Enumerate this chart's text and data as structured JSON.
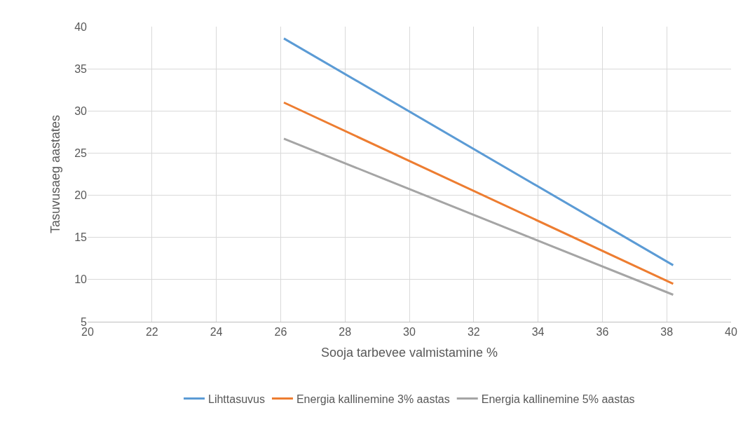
{
  "chart_data": {
    "type": "line",
    "xlabel": "Sooja tarbevee valmistamine %",
    "ylabel": "Tasuvusaeg aastates",
    "x": [
      26.1,
      38.2
    ],
    "series": [
      {
        "name": "Lihttasuvus",
        "color": "#5b9bd5",
        "values": [
          38.6,
          11.7
        ]
      },
      {
        "name": "Energia kallinemine 3% aastas",
        "color": "#ed7d31",
        "values": [
          31.0,
          9.5
        ]
      },
      {
        "name": "Energia kallinemine 5% aastas",
        "color": "#a5a5a5",
        "values": [
          26.7,
          8.2
        ]
      }
    ],
    "xlim": [
      20,
      40
    ],
    "xticks": [
      20,
      22,
      24,
      26,
      28,
      30,
      32,
      34,
      36,
      38,
      40
    ],
    "ylim": [
      5,
      40
    ],
    "yticks": [
      5,
      10,
      15,
      20,
      25,
      30,
      35,
      40
    ],
    "grid": true,
    "legend": "bottom",
    "marker": "none",
    "line_style": "solid"
  }
}
